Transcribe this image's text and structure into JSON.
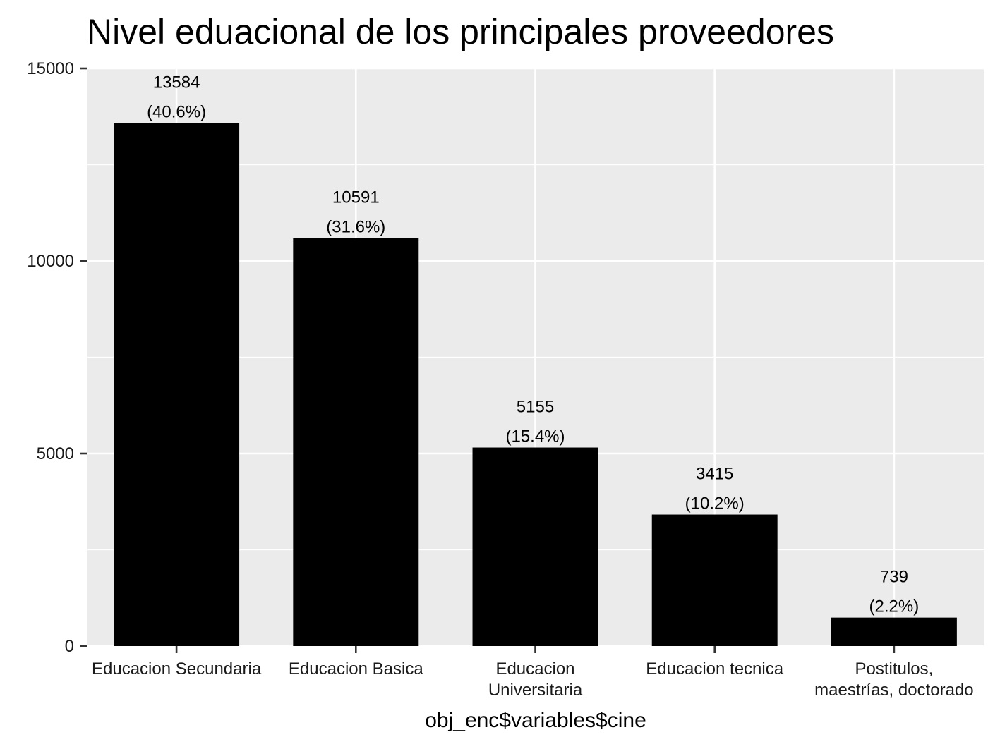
{
  "chart_data": {
    "type": "bar",
    "title": "Nivel eduacional de los principales proveedores",
    "xlabel": "obj_enc$variables$cine",
    "ylabel": "",
    "ylim": [
      0,
      15000
    ],
    "yticks": [
      0,
      5000,
      10000,
      15000
    ],
    "categories": [
      [
        "Educacion Secundaria"
      ],
      [
        "Educacion Basica"
      ],
      [
        "Educacion",
        "Universitaria"
      ],
      [
        "Educacion tecnica"
      ],
      [
        "Postitulos,",
        "maestrías, doctorado"
      ]
    ],
    "values": [
      13584,
      10591,
      5155,
      3415,
      739
    ],
    "value_labels": [
      "13584",
      "10591",
      "5155",
      "3415",
      "739"
    ],
    "percent_labels": [
      "(40.6%)",
      "(31.6%)",
      "(15.4%)",
      "(10.2%)",
      "(2.2%)"
    ],
    "grid": true,
    "colors": {
      "panel_background": "#ebebeb",
      "grid_line": "#ffffff",
      "bar_fill": "#000000",
      "tick": "#333333",
      "text": "#000000"
    }
  }
}
